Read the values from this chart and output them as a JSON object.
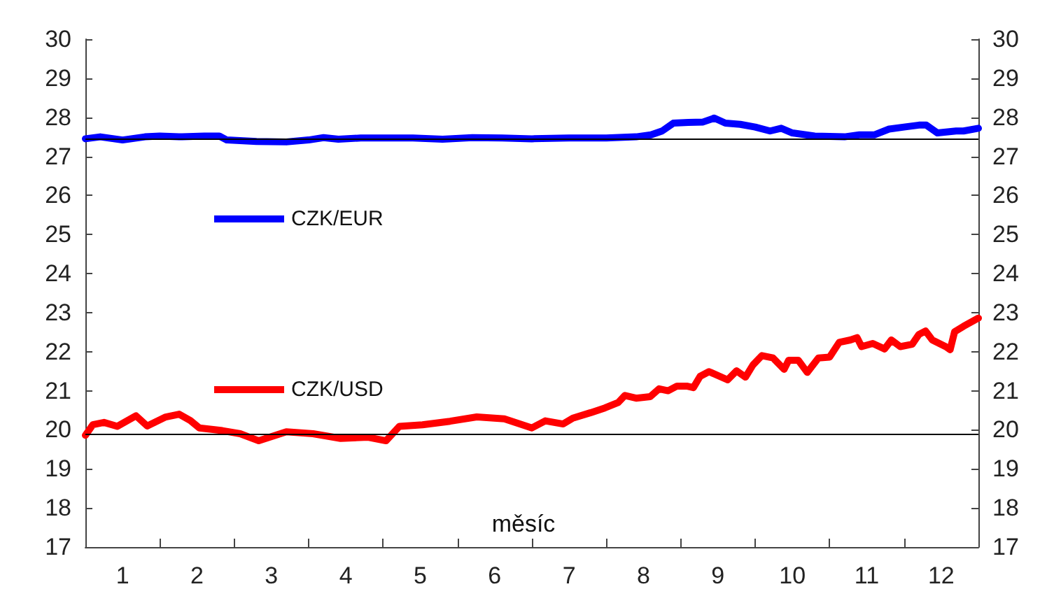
{
  "chart_data": {
    "type": "line",
    "xlabel": "měsíc",
    "xlim": [
      0,
      12
    ],
    "xticks": [
      {
        "value": 0,
        "label": null
      },
      {
        "value": 0.5,
        "label": "1"
      },
      {
        "value": 1,
        "label": null
      },
      {
        "value": 1.5,
        "label": "2"
      },
      {
        "value": 2,
        "label": null
      },
      {
        "value": 2.5,
        "label": "3"
      },
      {
        "value": 3,
        "label": null
      },
      {
        "value": 3.5,
        "label": "4"
      },
      {
        "value": 4,
        "label": null
      },
      {
        "value": 4.5,
        "label": "5"
      },
      {
        "value": 5,
        "label": null
      },
      {
        "value": 5.5,
        "label": "6"
      },
      {
        "value": 6,
        "label": null
      },
      {
        "value": 6.5,
        "label": "7"
      },
      {
        "value": 7,
        "label": null
      },
      {
        "value": 7.5,
        "label": "8"
      },
      {
        "value": 8,
        "label": null
      },
      {
        "value": 8.5,
        "label": "9"
      },
      {
        "value": 9,
        "label": null
      },
      {
        "value": 9.5,
        "label": "10"
      },
      {
        "value": 10,
        "label": null
      },
      {
        "value": 10.5,
        "label": "11"
      },
      {
        "value": 11,
        "label": null
      },
      {
        "value": 11.5,
        "label": "12"
      },
      {
        "value": 12,
        "label": null
      }
    ],
    "ylim": [
      17,
      30
    ],
    "yticks": [
      17,
      18,
      19,
      20,
      21,
      22,
      23,
      24,
      25,
      26,
      27,
      28,
      29,
      30
    ],
    "y2lim": [
      17,
      30
    ],
    "y2ticks": [
      17,
      18,
      19,
      20,
      21,
      22,
      23,
      24,
      25,
      26,
      27,
      28,
      29,
      30
    ],
    "grid": false,
    "legend": "left",
    "marker": "none",
    "line_style": "solid",
    "tick_labels": "xy",
    "ref_lines": [
      {
        "axis": "y",
        "value": 27.45,
        "color": "#000000"
      },
      {
        "axis": "y",
        "value": 19.9,
        "color": "#000000"
      }
    ],
    "series": [
      {
        "name": "CZK/EUR",
        "color": "#0000ff",
        "x": [
          0,
          0.2,
          0.5,
          0.8,
          1.0,
          1.3,
          1.6,
          1.8,
          1.9,
          2.3,
          2.7,
          3.0,
          3.2,
          3.4,
          3.7,
          4.0,
          4.4,
          4.8,
          5.2,
          5.6,
          6.0,
          6.5,
          7.0,
          7.4,
          7.6,
          7.75,
          7.9,
          8.1,
          8.3,
          8.45,
          8.6,
          8.8,
          9.0,
          9.2,
          9.35,
          9.5,
          9.8,
          10.2,
          10.4,
          10.6,
          10.8,
          11.0,
          11.2,
          11.3,
          11.45,
          11.7,
          11.8,
          12.0
        ],
        "values": [
          27.45,
          27.5,
          27.42,
          27.5,
          27.52,
          27.5,
          27.52,
          27.52,
          27.42,
          27.38,
          27.37,
          27.42,
          27.48,
          27.44,
          27.47,
          27.47,
          27.47,
          27.44,
          27.48,
          27.47,
          27.45,
          27.47,
          27.47,
          27.5,
          27.55,
          27.65,
          27.85,
          27.87,
          27.88,
          27.98,
          27.85,
          27.82,
          27.75,
          27.65,
          27.72,
          27.6,
          27.52,
          27.5,
          27.55,
          27.55,
          27.7,
          27.75,
          27.8,
          27.8,
          27.6,
          27.65,
          27.65,
          27.72
        ]
      },
      {
        "name": "CZK/USD",
        "color": "#ff0000",
        "x": [
          0,
          0.1,
          0.25,
          0.43,
          0.68,
          0.83,
          1.08,
          1.26,
          1.41,
          1.53,
          1.84,
          2.08,
          2.33,
          2.7,
          3.06,
          3.43,
          3.8,
          4.04,
          4.22,
          4.53,
          4.9,
          5.26,
          5.63,
          6.0,
          6.18,
          6.42,
          6.55,
          6.79,
          6.98,
          7.16,
          7.25,
          7.4,
          7.59,
          7.71,
          7.83,
          7.95,
          8.08,
          8.17,
          8.26,
          8.38,
          8.63,
          8.75,
          8.87,
          8.97,
          9.09,
          9.24,
          9.39,
          9.45,
          9.58,
          9.7,
          9.85,
          10.0,
          10.13,
          10.28,
          10.37,
          10.43,
          10.58,
          10.74,
          10.83,
          10.95,
          11.11,
          11.2,
          11.29,
          11.38,
          11.56,
          11.62,
          11.68,
          11.8,
          12.0
        ],
        "values": [
          19.86,
          20.13,
          20.19,
          20.09,
          20.36,
          20.1,
          20.33,
          20.4,
          20.24,
          20.05,
          19.98,
          19.9,
          19.72,
          19.95,
          19.9,
          19.78,
          19.81,
          19.72,
          20.09,
          20.13,
          20.22,
          20.33,
          20.28,
          20.05,
          20.23,
          20.15,
          20.3,
          20.44,
          20.56,
          20.7,
          20.88,
          20.81,
          20.85,
          21.05,
          21.0,
          21.12,
          21.12,
          21.08,
          21.37,
          21.49,
          21.28,
          21.51,
          21.35,
          21.66,
          21.9,
          21.84,
          21.55,
          21.78,
          21.78,
          21.47,
          21.84,
          21.86,
          22.24,
          22.3,
          22.36,
          22.13,
          22.21,
          22.07,
          22.3,
          22.13,
          22.19,
          22.44,
          22.53,
          22.3,
          22.13,
          22.05,
          22.51,
          22.65,
          22.86
        ]
      }
    ]
  }
}
